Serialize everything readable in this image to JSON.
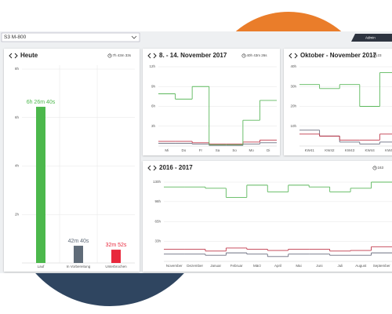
{
  "dropdown": "S3 M-800",
  "admin": "Admin",
  "chart_data": [
    {
      "type": "bar",
      "title": "Heute",
      "duration": "7h 43m 33s",
      "categories": [
        "Lauf",
        "In Vorbereitung",
        "Unterbrochen"
      ],
      "values": [
        6.444,
        0.711,
        0.548
      ],
      "value_labels": [
        "6h 26m 40s",
        "42m 40s",
        "32m 52s"
      ],
      "colors": [
        "#4cb84c",
        "#5f6b78",
        "#e8283c"
      ],
      "ylim": [
        0,
        8
      ],
      "yticks": [
        {
          "value": 2,
          "label": "2h"
        },
        {
          "value": 4,
          "label": "4h"
        },
        {
          "value": 6,
          "label": "6h"
        },
        {
          "value": 8,
          "label": "8h"
        }
      ]
    },
    {
      "type": "step",
      "title": "8. - 14. November 2017",
      "duration": "40h 43m 26s",
      "categories": [
        "Mi",
        "Do",
        "Fr",
        "Sa",
        "So",
        "Mo",
        "Di"
      ],
      "series": [
        {
          "color": "#5cb85c",
          "values": [
            7.9,
            7.1,
            9,
            0.2,
            0.2,
            3.9,
            6.9
          ]
        },
        {
          "color": "#c0394b",
          "values": [
            0.7,
            0.7,
            0.5,
            0.3,
            0.3,
            0.6,
            0.9
          ]
        },
        {
          "color": "#6c6f80",
          "values": [
            0.4,
            0.4,
            0.3,
            0.1,
            0.1,
            0.3,
            0.5
          ]
        }
      ],
      "ylim": [
        0,
        12
      ],
      "yticks": [
        {
          "value": 3,
          "label": "3h"
        },
        {
          "value": 6,
          "label": "6h"
        },
        {
          "value": 9,
          "label": "9h"
        },
        {
          "value": 12,
          "label": "12h"
        }
      ]
    },
    {
      "type": "step",
      "title": "Oktober - November 2017",
      "duration": "23",
      "categories": [
        "KW41",
        "KW42",
        "KW43",
        "KW44",
        "KW45"
      ],
      "series": [
        {
          "color": "#5cb85c",
          "values": [
            31,
            29,
            31,
            20,
            37
          ]
        },
        {
          "color": "#c0394b",
          "values": [
            6,
            5,
            3,
            3,
            6
          ]
        },
        {
          "color": "#6c6f80",
          "values": [
            8,
            5,
            2,
            1,
            2
          ]
        }
      ],
      "ylim": [
        0,
        40
      ],
      "yticks": [
        {
          "value": 10,
          "label": "10h"
        },
        {
          "value": 20,
          "label": "20h"
        },
        {
          "value": 30,
          "label": "30h"
        },
        {
          "value": 40,
          "label": "40h"
        }
      ]
    },
    {
      "type": "step",
      "title": "2016 - 2017",
      "duration": "163",
      "categories": [
        "November",
        "Dezember",
        "Januar",
        "Februar",
        "März",
        "April",
        "Mai",
        "Juni",
        "Juli",
        "August",
        "September"
      ],
      "series": [
        {
          "color": "#5cb85c",
          "values": [
            122,
            122,
            120,
            105,
            125,
            114,
            125,
            122,
            114,
            120,
            130
          ]
        },
        {
          "color": "#c0394b",
          "values": [
            20,
            20,
            17,
            22,
            20,
            18,
            20,
            20,
            17,
            18,
            24
          ]
        },
        {
          "color": "#6c6f80",
          "values": [
            12,
            12,
            10,
            14,
            12,
            8,
            12,
            12,
            10,
            10,
            14
          ]
        }
      ],
      "ylim": [
        0,
        130
      ],
      "yticks": [
        {
          "value": 33,
          "label": "33h"
        },
        {
          "value": 65,
          "label": "65h"
        },
        {
          "value": 98,
          "label": "98h"
        },
        {
          "value": 130,
          "label": "130h"
        }
      ]
    }
  ]
}
